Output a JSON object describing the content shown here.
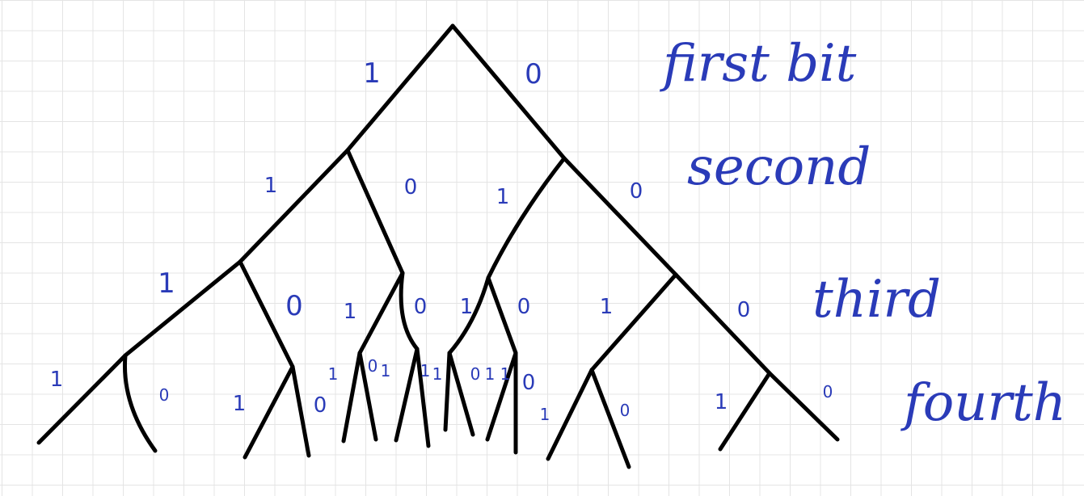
{
  "colors": {
    "ink": "#000000",
    "handwriting": "#2a3bb8",
    "grid": "#e4e4e4"
  },
  "level_labels": {
    "first": "first bit",
    "second": "second",
    "third": "third",
    "fourth": "fourth"
  },
  "bit_labels": {
    "one": "1",
    "zero": "0"
  }
}
